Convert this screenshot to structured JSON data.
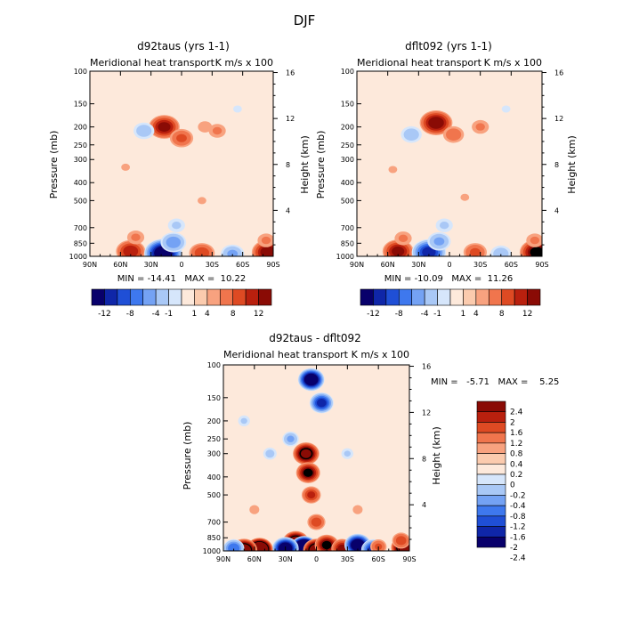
{
  "page_title": "DJF",
  "colors": {
    "ramp": [
      "#08006b",
      "#0f26a8",
      "#1f4fd6",
      "#3e78ee",
      "#74a2f4",
      "#a9c8f6",
      "#d6e6fb",
      "#fde9db",
      "#fbcbae",
      "#f8a27f",
      "#f0754d",
      "#de4a23",
      "#b9200e",
      "#8a0b05"
    ]
  },
  "chart_data": [
    {
      "id": "panel1",
      "type": "heatmap",
      "title": "d92taus (yrs 1-1)",
      "subtitle_left": "Meridional heat transport",
      "subtitle_right": "K m/s x 100",
      "xlabel": "",
      "ylabel": "Pressure (mb)",
      "ylabel_right": "Height (km)",
      "x_ticks": [
        "90N",
        "60N",
        "30N",
        "0",
        "30S",
        "60S",
        "90S"
      ],
      "y_ticks": [
        "100",
        "150",
        "200",
        "250",
        "300",
        "400",
        "500",
        "700",
        "850",
        "1000"
      ],
      "y_right_ticks": [
        "16",
        "12",
        "8",
        "4"
      ],
      "xlim": [
        90,
        -90
      ],
      "ylim": [
        1000,
        100
      ],
      "stats": "MIN = -14.41   MAX =  10.22",
      "min": -14.41,
      "max": 10.22,
      "levels": [
        -12,
        -10,
        -8,
        -6,
        -4,
        -2,
        -1,
        0,
        1,
        2,
        4,
        6,
        8,
        10,
        12
      ],
      "colorbar_labels": [
        "-12",
        "-8",
        "-4",
        "-1",
        "1",
        "4",
        "8",
        "12"
      ],
      "features": [
        {
          "lat": 17,
          "p": 200,
          "value": 8
        },
        {
          "lat": 0,
          "p": 230,
          "value": 4
        },
        {
          "lat": -35,
          "p": 210,
          "value": 2
        },
        {
          "lat": -23,
          "p": 200,
          "value": 1.5
        },
        {
          "lat": 37,
          "p": 210,
          "value": -3
        },
        {
          "lat": -55,
          "p": 160,
          "value": -1
        },
        {
          "lat": 55,
          "p": 330,
          "value": 1
        },
        {
          "lat": -20,
          "p": 500,
          "value": 1
        },
        {
          "lat": 50,
          "p": 940,
          "value": 7
        },
        {
          "lat": 45,
          "p": 790,
          "value": 2
        },
        {
          "lat": 18,
          "p": 960,
          "value": -14
        },
        {
          "lat": 8,
          "p": 840,
          "value": -5
        },
        {
          "lat": 5,
          "p": 680,
          "value": -2
        },
        {
          "lat": -20,
          "p": 960,
          "value": 5
        },
        {
          "lat": -50,
          "p": 970,
          "value": -4
        },
        {
          "lat": -85,
          "p": 950,
          "value": 9
        },
        {
          "lat": -83,
          "p": 820,
          "value": 2
        }
      ]
    },
    {
      "id": "panel2",
      "type": "heatmap",
      "title": "dflt092 (yrs 1-1)",
      "subtitle_left": "Meridional heat transport",
      "subtitle_right": "K m/s x 100",
      "xlabel": "",
      "ylabel": "Pressure (mb)",
      "ylabel_right": "Height (km)",
      "x_ticks": [
        "90N",
        "60N",
        "30N",
        "0",
        "30S",
        "60S",
        "90S"
      ],
      "y_ticks": [
        "100",
        "150",
        "200",
        "250",
        "300",
        "400",
        "500",
        "700",
        "850",
        "1000"
      ],
      "y_right_ticks": [
        "16",
        "12",
        "8",
        "4"
      ],
      "xlim": [
        90,
        -90
      ],
      "ylim": [
        1000,
        100
      ],
      "stats": "MIN = -10.09   MAX =  11.26",
      "min": -10.09,
      "max": 11.26,
      "levels": [
        -12,
        -10,
        -8,
        -6,
        -4,
        -2,
        -1,
        0,
        1,
        2,
        4,
        6,
        8,
        10,
        12
      ],
      "colorbar_labels": [
        "-12",
        "-8",
        "-4",
        "-1",
        "1",
        "4",
        "8",
        "12"
      ],
      "features": [
        {
          "lat": 13,
          "p": 190,
          "value": 9
        },
        {
          "lat": -4,
          "p": 220,
          "value": 3
        },
        {
          "lat": -30,
          "p": 200,
          "value": 2
        },
        {
          "lat": 37,
          "p": 220,
          "value": -3
        },
        {
          "lat": -55,
          "p": 160,
          "value": -1
        },
        {
          "lat": 55,
          "p": 340,
          "value": 1
        },
        {
          "lat": -15,
          "p": 480,
          "value": 1
        },
        {
          "lat": 50,
          "p": 940,
          "value": 8
        },
        {
          "lat": 45,
          "p": 800,
          "value": 2
        },
        {
          "lat": 20,
          "p": 950,
          "value": -10
        },
        {
          "lat": 10,
          "p": 830,
          "value": -4
        },
        {
          "lat": 5,
          "p": 680,
          "value": -2
        },
        {
          "lat": -25,
          "p": 950,
          "value": 4
        },
        {
          "lat": -50,
          "p": 970,
          "value": -3
        },
        {
          "lat": -85,
          "p": 950,
          "value": 10
        },
        {
          "lat": -83,
          "p": 820,
          "value": 2
        }
      ]
    },
    {
      "id": "panel3",
      "type": "heatmap",
      "title": "d92taus - dflt092",
      "subtitle_left": "Meridional heat transport",
      "subtitle_right": "K m/s x 100",
      "xlabel": "",
      "ylabel": "Pressure (mb)",
      "ylabel_right": "Height (km)",
      "x_ticks": [
        "90N",
        "60N",
        "30N",
        "0",
        "30S",
        "60S",
        "90S"
      ],
      "y_ticks": [
        "100",
        "150",
        "200",
        "250",
        "300",
        "400",
        "500",
        "700",
        "850",
        "1000"
      ],
      "y_right_ticks": [
        "16",
        "12",
        "8",
        "4"
      ],
      "xlim": [
        90,
        -90
      ],
      "ylim": [
        1000,
        100
      ],
      "stats": "MIN =   -5.71   MAX =    5.25",
      "min": -5.71,
      "max": 5.25,
      "levels": [
        -2.4,
        -2,
        -1.6,
        -1.2,
        -0.8,
        -0.4,
        -0.2,
        0,
        0.2,
        0.4,
        0.8,
        1.2,
        1.6,
        2,
        2.4
      ],
      "colorbar_labels": [
        "2.4",
        "2",
        "1.6",
        "1.2",
        "0.8",
        "0.4",
        "0.2",
        "0",
        "-0.2",
        "-0.4",
        "-0.8",
        "-1.2",
        "-1.6",
        "-2",
        "-2.4"
      ],
      "features": [
        {
          "lat": 5,
          "p": 120,
          "value": -3
        },
        {
          "lat": -5,
          "p": 160,
          "value": -2
        },
        {
          "lat": 10,
          "p": 300,
          "value": 2.4
        },
        {
          "lat": 8,
          "p": 380,
          "value": 2
        },
        {
          "lat": 5,
          "p": 500,
          "value": 1.2
        },
        {
          "lat": 0,
          "p": 700,
          "value": 1
        },
        {
          "lat": 25,
          "p": 250,
          "value": -0.8
        },
        {
          "lat": 45,
          "p": 300,
          "value": -0.5
        },
        {
          "lat": -30,
          "p": 300,
          "value": -0.4
        },
        {
          "lat": 70,
          "p": 200,
          "value": -0.4
        },
        {
          "lat": 60,
          "p": 600,
          "value": 0.3
        },
        {
          "lat": -40,
          "p": 600,
          "value": 0.3
        },
        {
          "lat": 20,
          "p": 900,
          "value": 3
        },
        {
          "lat": 12,
          "p": 960,
          "value": -5
        },
        {
          "lat": 30,
          "p": 970,
          "value": -3
        },
        {
          "lat": 55,
          "p": 980,
          "value": 4
        },
        {
          "lat": 70,
          "p": 990,
          "value": 3
        },
        {
          "lat": 80,
          "p": 970,
          "value": -1.5
        },
        {
          "lat": 0,
          "p": 990,
          "value": 3
        },
        {
          "lat": -10,
          "p": 930,
          "value": 2
        },
        {
          "lat": -25,
          "p": 970,
          "value": 1.6
        },
        {
          "lat": -40,
          "p": 930,
          "value": -3
        },
        {
          "lat": -55,
          "p": 985,
          "value": -2
        },
        {
          "lat": -60,
          "p": 950,
          "value": 0.8
        },
        {
          "lat": -85,
          "p": 960,
          "value": 3
        },
        {
          "lat": -82,
          "p": 880,
          "value": 1
        }
      ]
    }
  ]
}
